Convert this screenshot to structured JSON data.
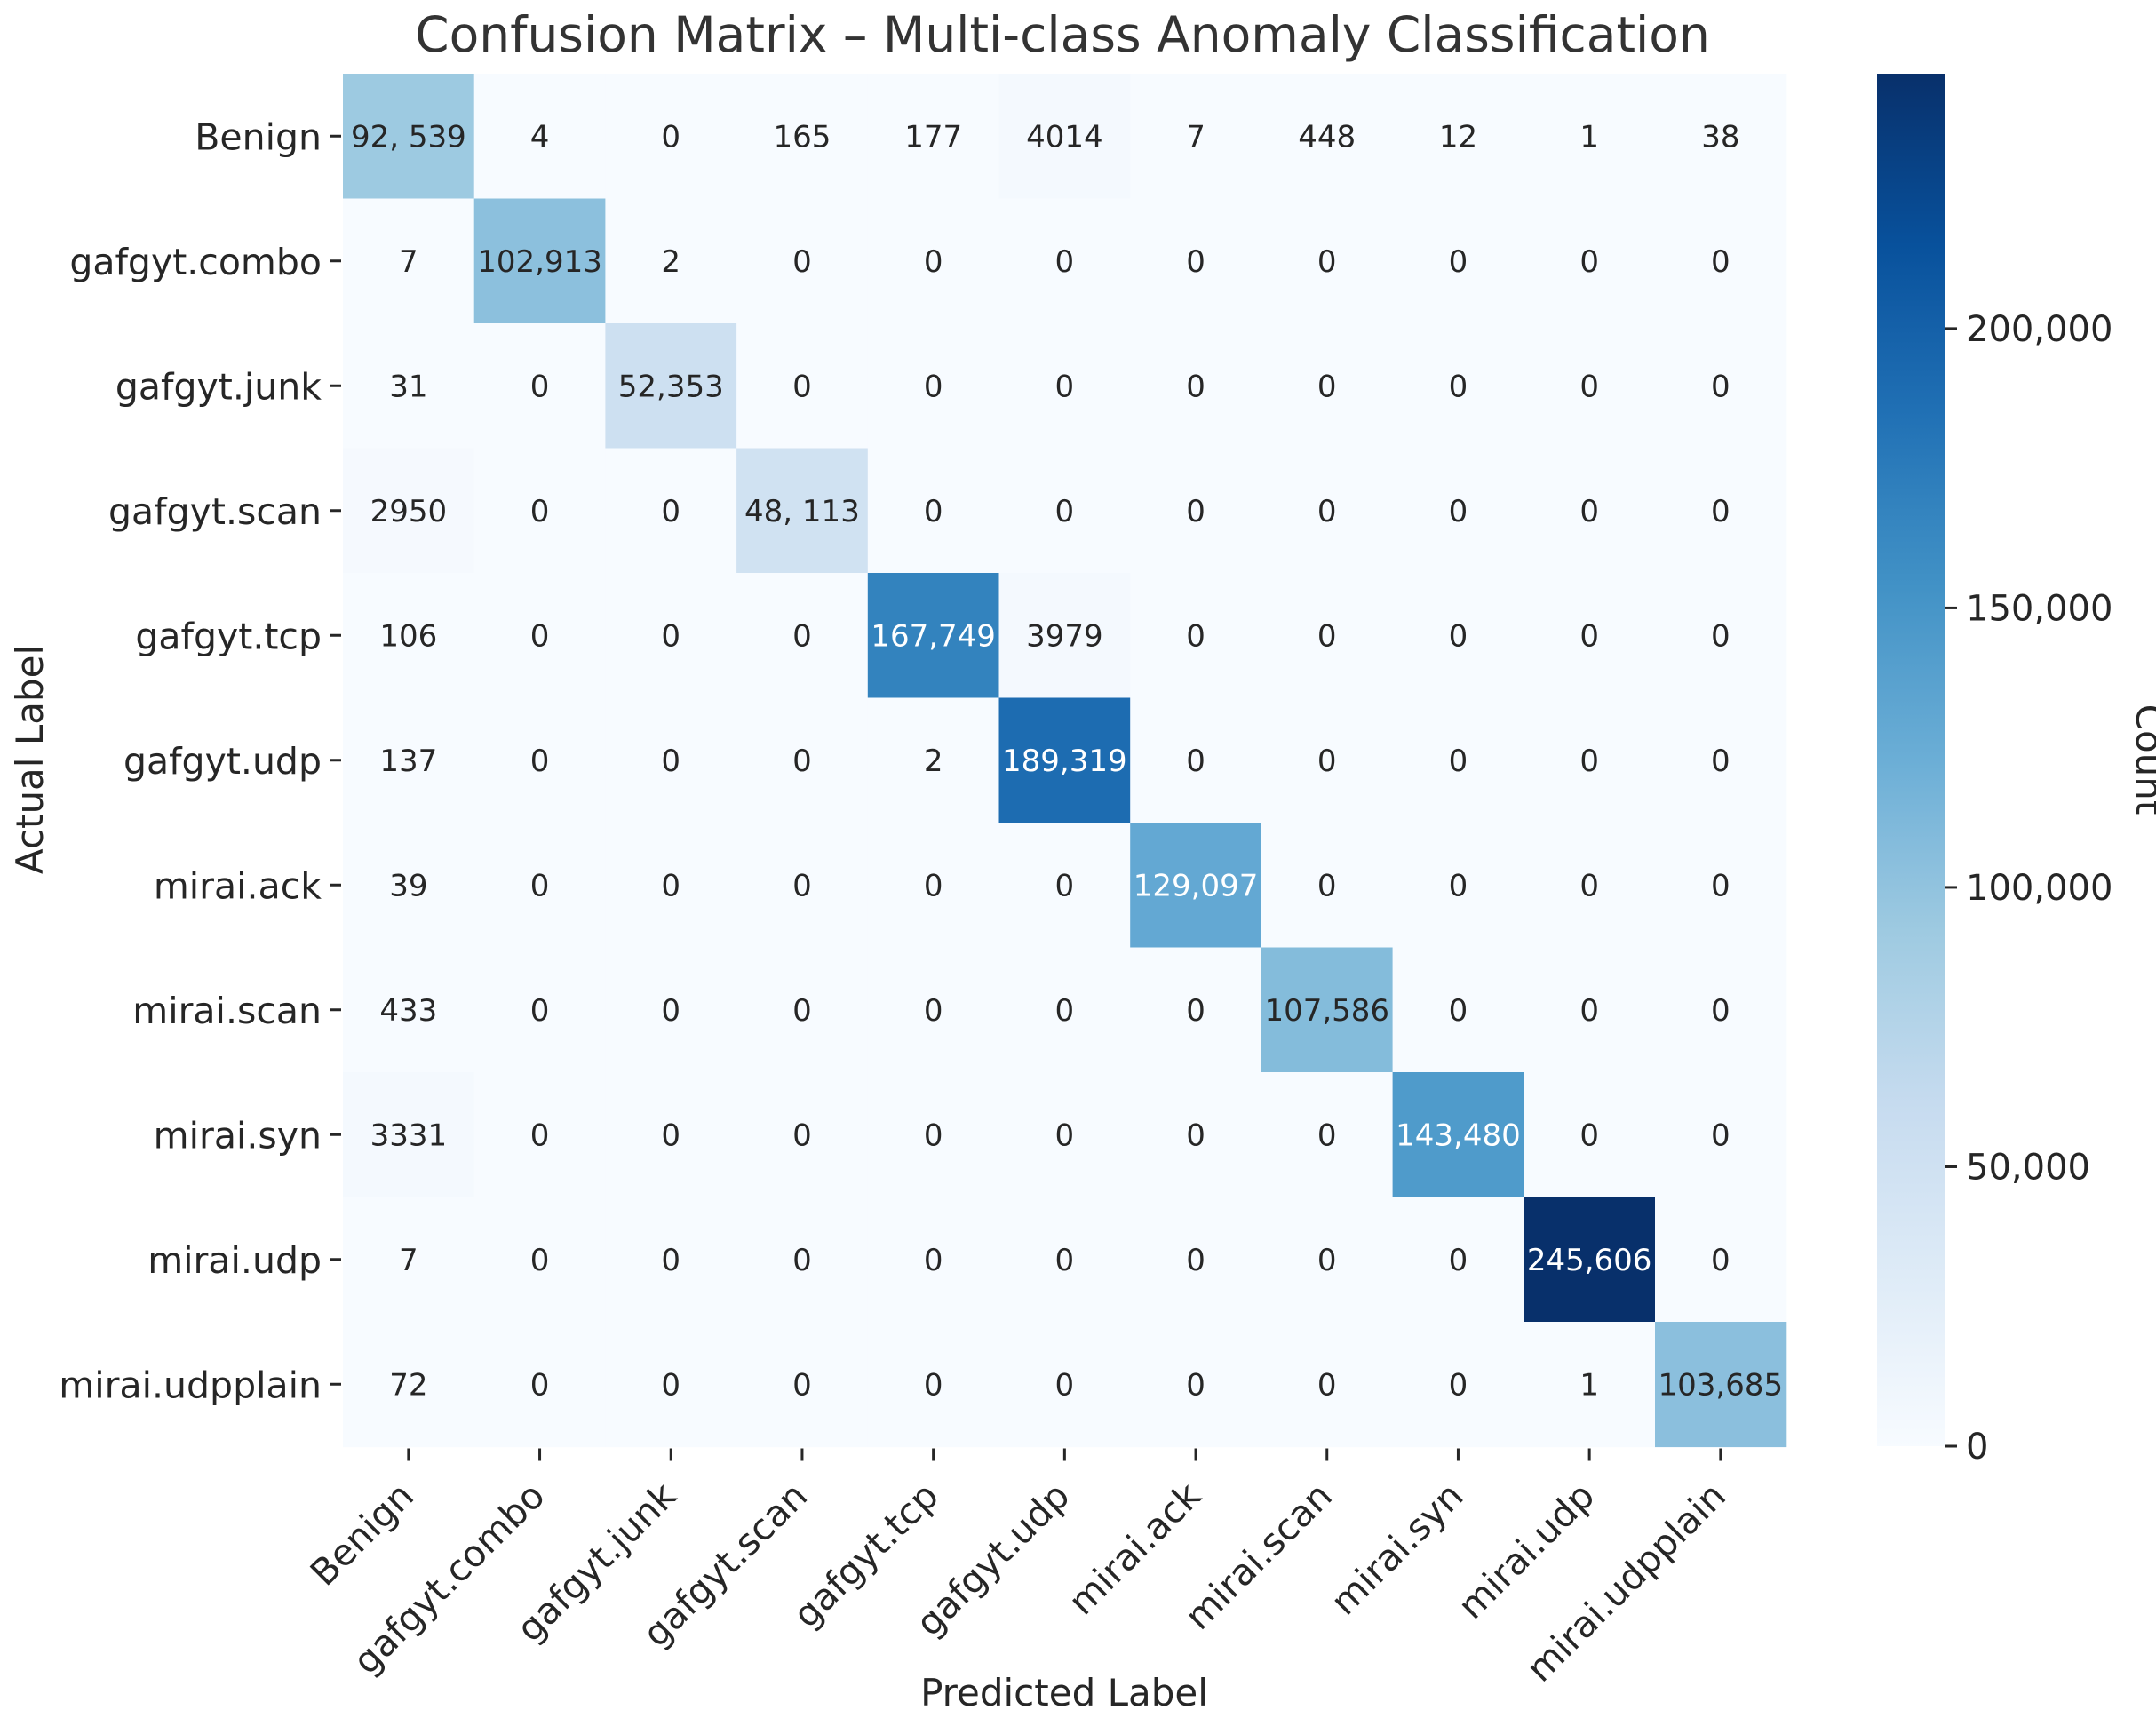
{
  "chart_data": {
    "type": "heatmap",
    "title": "Confusion Matrix – Multi-class Anomaly Classification",
    "xlabel": "Predicted Label",
    "ylabel": "Actual Label",
    "x_categories": [
      "Benign",
      "gafgyt.combo",
      "gafgyt.junk",
      "gafgyt.scan",
      "gafgyt.tcp",
      "gafgyt.udp",
      "mirai.ack",
      "mirai.scan",
      "mirai.syn",
      "mirai.udp",
      "mirai.udpplain"
    ],
    "y_categories": [
      "Benign",
      "gafgyt.combo",
      "gafgyt.junk",
      "gafgyt.scan",
      "gafgyt.tcp",
      "gafgyt.udp",
      "mirai.ack",
      "mirai.scan",
      "mirai.syn",
      "mirai.udp",
      "mirai.udpplain"
    ],
    "values": [
      [
        92539,
        4,
        0,
        165,
        177,
        4014,
        7,
        448,
        12,
        1,
        38
      ],
      [
        7,
        102913,
        2,
        0,
        0,
        0,
        0,
        0,
        0,
        0,
        0
      ],
      [
        31,
        0,
        52353,
        0,
        0,
        0,
        0,
        0,
        0,
        0,
        0
      ],
      [
        2950,
        0,
        0,
        48113,
        0,
        0,
        0,
        0,
        0,
        0,
        0
      ],
      [
        106,
        0,
        0,
        0,
        167749,
        3979,
        0,
        0,
        0,
        0,
        0
      ],
      [
        137,
        0,
        0,
        0,
        2,
        189319,
        0,
        0,
        0,
        0,
        0
      ],
      [
        39,
        0,
        0,
        0,
        0,
        0,
        129097,
        0,
        0,
        0,
        0
      ],
      [
        433,
        0,
        0,
        0,
        0,
        0,
        0,
        107586,
        0,
        0,
        0
      ],
      [
        3331,
        0,
        0,
        0,
        0,
        0,
        0,
        0,
        143480,
        0,
        0
      ],
      [
        7,
        0,
        0,
        0,
        0,
        0,
        0,
        0,
        0,
        245606,
        0
      ],
      [
        72,
        0,
        0,
        0,
        0,
        0,
        0,
        0,
        0,
        1,
        103685
      ]
    ],
    "cell_labels": [
      [
        "92, 539",
        "4",
        "0",
        "165",
        "177",
        "4014",
        "7",
        "448",
        "12",
        "1",
        "38"
      ],
      [
        "7",
        "102,913",
        "2",
        "0",
        "0",
        "0",
        "0",
        "0",
        "0",
        "0",
        "0"
      ],
      [
        "31",
        "0",
        "52,353",
        "0",
        "0",
        "0",
        "0",
        "0",
        "0",
        "0",
        "0"
      ],
      [
        "2950",
        "0",
        "0",
        "48, 113",
        "0",
        "0",
        "0",
        "0",
        "0",
        "0",
        "0"
      ],
      [
        "106",
        "0",
        "0",
        "0",
        "167,749",
        "3979",
        "0",
        "0",
        "0",
        "0",
        "0"
      ],
      [
        "137",
        "0",
        "0",
        "0",
        "2",
        "189,319",
        "0",
        "0",
        "0",
        "0",
        "0"
      ],
      [
        "39",
        "0",
        "0",
        "0",
        "0",
        "0",
        "129,097",
        "0",
        "0",
        "0",
        "0"
      ],
      [
        "433",
        "0",
        "0",
        "0",
        "0",
        "0",
        "0",
        "107,586",
        "0",
        "0",
        "0"
      ],
      [
        "3331",
        "0",
        "0",
        "0",
        "0",
        "0",
        "0",
        "0",
        "143,480",
        "0",
        "0"
      ],
      [
        "7",
        "0",
        "0",
        "0",
        "0",
        "0",
        "0",
        "0",
        "0",
        "245,606",
        "0"
      ],
      [
        "72",
        "0",
        "0",
        "0",
        "0",
        "0",
        "0",
        "0",
        "0",
        "1",
        "103,685"
      ]
    ],
    "colorbar": {
      "label": "Count",
      "range": [
        0,
        245606
      ],
      "ticks": [
        0,
        50000,
        100000,
        150000,
        200000
      ],
      "tick_labels": [
        "0",
        "50,000",
        "100,000",
        "150,000",
        "200,000"
      ],
      "colormap": "Blues"
    },
    "colors": {
      "text_dark": "#262626",
      "text_light": "#ffffff",
      "title": "#333333"
    }
  }
}
